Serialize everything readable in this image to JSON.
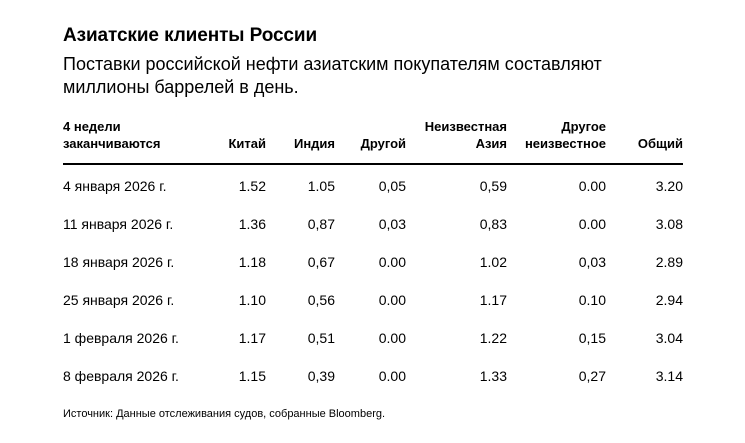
{
  "header": {
    "title": "Азиатские клиенты России",
    "subtitle": "Поставки российской нефти азиатским покупателям составляют миллионы баррелей в день."
  },
  "table": {
    "columns": [
      "4 недели\nзаканчиваются",
      "Китай",
      "Индия",
      "Другой",
      "Неизвестная\nАзия",
      "Другое\nнеизвестное",
      "Общий"
    ],
    "rows": [
      [
        "4 января 2026 г.",
        "1.52",
        "1.05",
        "0,05",
        "0,59",
        "0.00",
        "3.20"
      ],
      [
        "11 января 2026 г.",
        "1.36",
        "0,87",
        "0,03",
        "0,83",
        "0.00",
        "3.08"
      ],
      [
        "18 января 2026 г.",
        "1.18",
        "0,67",
        "0.00",
        "1.02",
        "0,03",
        "2.89"
      ],
      [
        "25 января 2026 г.",
        "1.10",
        "0,56",
        "0.00",
        "1.17",
        "0.10",
        "2.94"
      ],
      [
        "1 февраля 2026 г.",
        "1.17",
        "0,51",
        "0.00",
        "1.22",
        "0,15",
        "3.04"
      ],
      [
        "8 февраля 2026 г.",
        "1.15",
        "0,39",
        "0.00",
        "1.33",
        "0,27",
        "3.14"
      ]
    ]
  },
  "footer": {
    "source": "Источник: Данные отслеживания судов, собранные Bloomberg."
  }
}
